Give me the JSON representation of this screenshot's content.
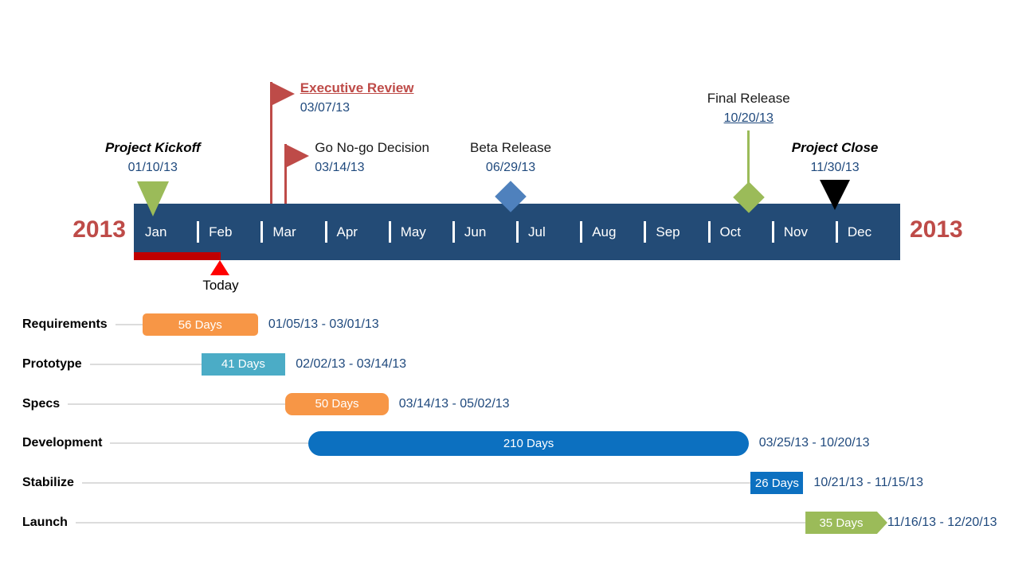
{
  "colors": {
    "band_navy": "#234B76",
    "year_red": "#BE4B48",
    "flag_red": "#BE4B48",
    "olive_green": "#9BBB59",
    "steel_blue_diamond": "#4F81BD",
    "black_marker": "#000000",
    "bar_orange": "#F79646",
    "bar_teal": "#4BACC6",
    "bar_blue": "#0C70C0",
    "bar_green": "#9BBB59",
    "date_text_blue": "#1F497D",
    "today_bar_red": "#C00000",
    "today_triangle_red": "#FF0000",
    "connector_gray": "#DCDCDC"
  },
  "timeline": {
    "year_left": "2013",
    "year_right": "2013",
    "months": [
      "Jan",
      "Feb",
      "Mar",
      "Apr",
      "May",
      "Jun",
      "Jul",
      "Aug",
      "Sep",
      "Oct",
      "Nov",
      "Dec"
    ]
  },
  "today_marker": {
    "label": "Today"
  },
  "chart_data": {
    "type": "gantt-timeline",
    "time_axis": {
      "year": "2013",
      "unit": "months",
      "start": "Jan",
      "end": "Dec"
    },
    "milestones": [
      {
        "id": "project-kickoff",
        "title": "Project Kickoff",
        "date": "01/10/13",
        "marker": "triangle-down",
        "marker_color": "#9BBB59",
        "emphasis": "bold-italic",
        "align": "center",
        "date_underline": false
      },
      {
        "id": "executive-review",
        "title": "Executive Review",
        "date": "03/07/13",
        "marker": "flag",
        "marker_color": "#BE4B48",
        "emphasis": "bold-underline-red",
        "align": "left",
        "date_underline": false
      },
      {
        "id": "go-no-go-decision",
        "title": "Go No-go Decision",
        "date": "03/14/13",
        "marker": "flag",
        "marker_color": "#BE4B48",
        "emphasis": "none",
        "align": "left",
        "date_underline": false
      },
      {
        "id": "beta-release",
        "title": "Beta Release",
        "date": "06/29/13",
        "marker": "diamond",
        "marker_color": "#4F81BD",
        "emphasis": "none",
        "align": "center",
        "date_underline": false
      },
      {
        "id": "final-release",
        "title": "Final Release",
        "date": "10/20/13",
        "marker": "diamond-stem",
        "marker_color": "#9BBB59",
        "emphasis": "none",
        "align": "center",
        "date_underline": true
      },
      {
        "id": "project-close",
        "title": "Project Close",
        "date": "11/30/13",
        "marker": "triangle-down-black",
        "marker_color": "#000000",
        "emphasis": "bold-italic",
        "align": "center",
        "date_underline": false
      }
    ],
    "tasks": [
      {
        "name": "Requirements",
        "duration_label": "56 Days",
        "start": "01/05/13",
        "end": "03/01/13",
        "range_label": "01/05/13 - 03/01/13",
        "color": "orange",
        "shape": "rounded-sm"
      },
      {
        "name": "Prototype",
        "duration_label": "41 Days",
        "start": "02/02/13",
        "end": "03/14/13",
        "range_label": "02/02/13 - 03/14/13",
        "color": "teal",
        "shape": "square"
      },
      {
        "name": "Specs",
        "duration_label": "50 Days",
        "start": "03/14/13",
        "end": "05/02/13",
        "range_label": "03/14/13 - 05/02/13",
        "color": "orange",
        "shape": "rounded-lg"
      },
      {
        "name": "Development",
        "duration_label": "210 Days",
        "start": "03/25/13",
        "end": "10/20/13",
        "range_label": "03/25/13 - 10/20/13",
        "color": "blue",
        "shape": "pill"
      },
      {
        "name": "Stabilize",
        "duration_label": "26 Days",
        "start": "10/21/13",
        "end": "11/15/13",
        "range_label": "10/21/13 - 11/15/13",
        "color": "blue",
        "shape": "square"
      },
      {
        "name": "Launch",
        "duration_label": "35 Days",
        "start": "11/16/13",
        "end": "12/20/13",
        "range_label": "11/16/13 - 12/20/13",
        "color": "green",
        "shape": "arrow"
      }
    ]
  }
}
